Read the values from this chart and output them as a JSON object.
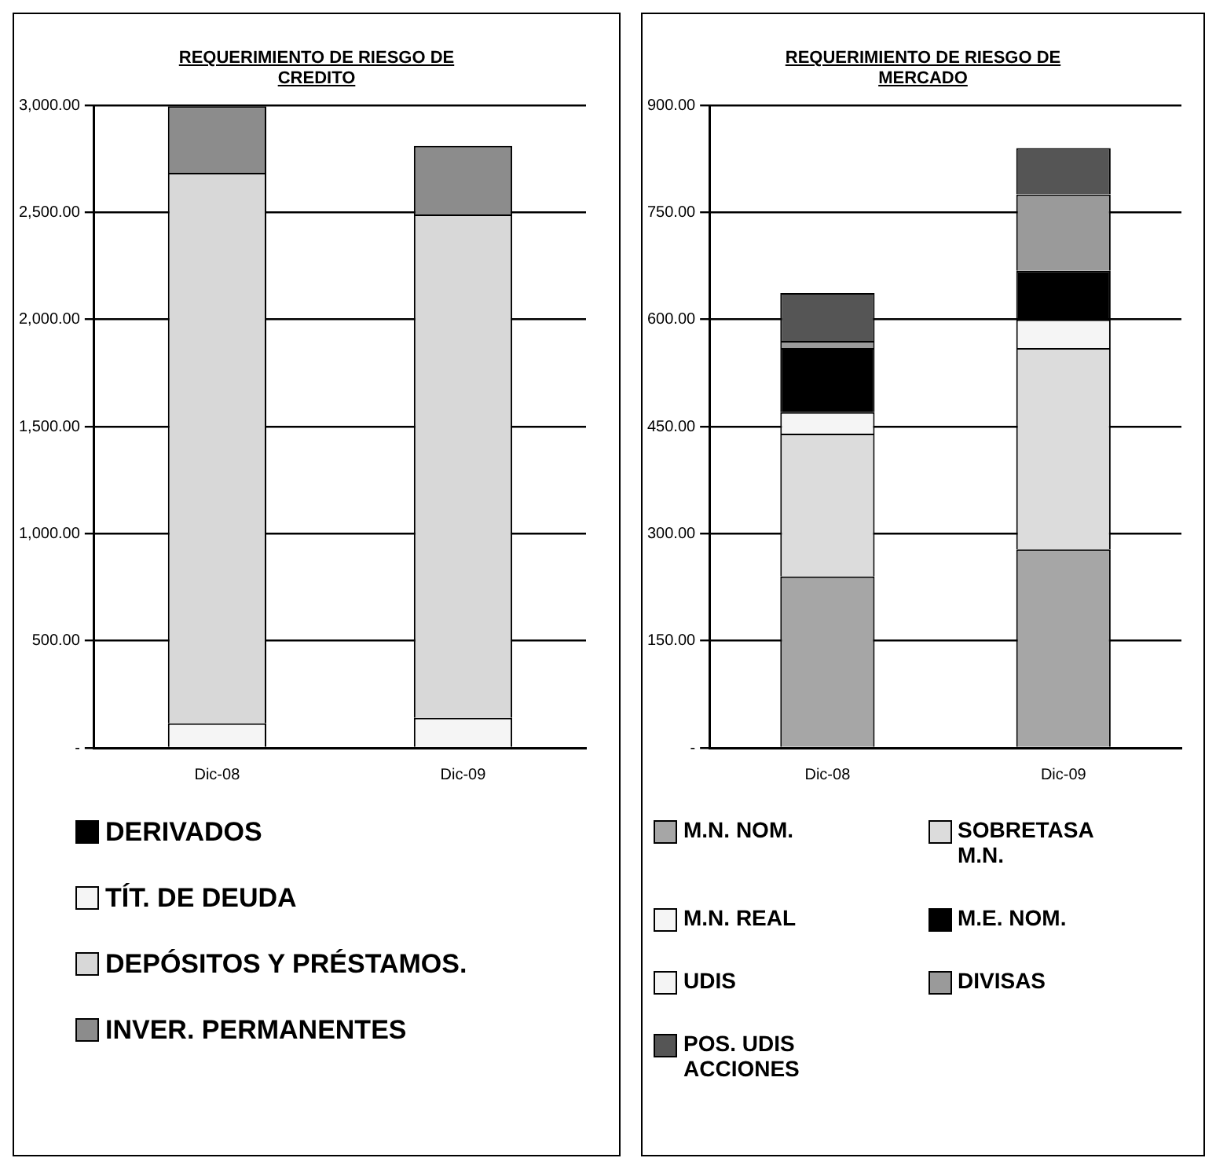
{
  "chart_data": [
    {
      "type": "bar",
      "title": "REQUERIMIENTO DE RIESGO DE CREDITO",
      "categories": [
        "Dic-08",
        "Dic-09"
      ],
      "stacked": true,
      "grid": "y",
      "legend": "bottom",
      "ylim": [
        0,
        3000
      ],
      "yticks": [
        {
          "value": 0,
          "label": "-"
        },
        {
          "value": 500,
          "label": "500.00"
        },
        {
          "value": 1000,
          "label": "1,000.00"
        },
        {
          "value": 1500,
          "label": "1,500.00"
        },
        {
          "value": 2000,
          "label": "2,000.00"
        },
        {
          "value": 2500,
          "label": "2,500.00"
        },
        {
          "value": 3000,
          "label": "3,000.00"
        }
      ],
      "series": [
        {
          "name": "DERIVADOS",
          "color": "#000000",
          "values": [
            null,
            null
          ]
        },
        {
          "name": "TÍT. DE DEUDA",
          "color": "#f5f5f5",
          "values": [
            115,
            140
          ]
        },
        {
          "name": "DEPÓSITOS Y PRÉSTAMOS.",
          "color": "#d8d8d8",
          "values": [
            2570,
            2350
          ]
        },
        {
          "name": "INVER. PERMANENTES",
          "color": "#8c8c8c",
          "values": [
            310,
            320
          ]
        }
      ]
    },
    {
      "type": "bar",
      "title": "REQUERIMIENTO DE RIESGO DE MERCADO",
      "categories": [
        "Dic-08",
        "Dic-09"
      ],
      "stacked": true,
      "grid": "y",
      "legend": "bottom",
      "ylim": [
        0,
        900
      ],
      "yticks": [
        {
          "value": 0,
          "label": "-"
        },
        {
          "value": 150,
          "label": "150.00"
        },
        {
          "value": 300,
          "label": "300.00"
        },
        {
          "value": 450,
          "label": "450.00"
        },
        {
          "value": 600,
          "label": "600.00"
        },
        {
          "value": 750,
          "label": "750.00"
        },
        {
          "value": 900,
          "label": "900.00"
        }
      ],
      "series": [
        {
          "name": "M.N. NOM.",
          "color": "#a6a6a6",
          "values": [
            240,
            278
          ]
        },
        {
          "name": "SOBRETASA M.N.",
          "color": "#dcdcdc",
          "values": [
            200,
            282
          ]
        },
        {
          "name": "M.N. REAL",
          "color": "#f5f5f5",
          "values": [
            30,
            40
          ]
        },
        {
          "name": "M.E. NOM.",
          "color": "#000000",
          "values": [
            90,
            68
          ]
        },
        {
          "name": "UDIS",
          "color": "#f4f4f4",
          "values": [
            0,
            0
          ]
        },
        {
          "name": "DIVISAS",
          "color": "#9a9a9a",
          "values": [
            10,
            107
          ]
        },
        {
          "name": "POS. UDIS ACCIONES",
          "color": "#555555",
          "values": [
            67,
            65
          ]
        }
      ]
    }
  ]
}
